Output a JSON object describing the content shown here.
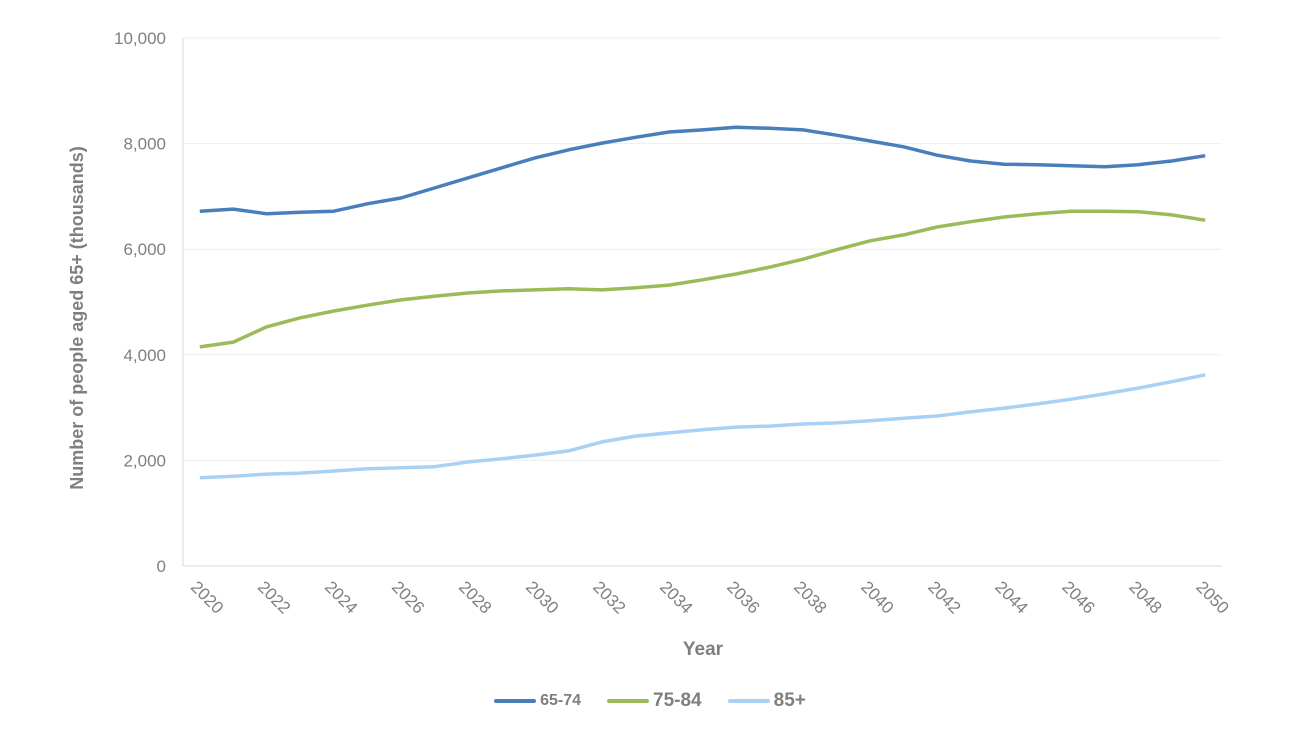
{
  "chart_data": {
    "type": "line",
    "title": "",
    "xlabel": "Year",
    "ylabel": "Number of people aged 65+  (thousands)",
    "ylim": [
      0,
      10000
    ],
    "yticks": [
      "0",
      "2,000",
      "4,000",
      "6,000",
      "8,000",
      "10,000"
    ],
    "ytick_values": [
      0,
      2000,
      4000,
      6000,
      8000,
      10000
    ],
    "x": [
      2020,
      2021,
      2022,
      2023,
      2024,
      2025,
      2026,
      2027,
      2028,
      2029,
      2030,
      2031,
      2032,
      2033,
      2034,
      2035,
      2036,
      2037,
      2038,
      2039,
      2040,
      2041,
      2042,
      2043,
      2044,
      2045,
      2046,
      2047,
      2048,
      2049,
      2050
    ],
    "xticks": [
      "2020",
      "2022",
      "2024",
      "2026",
      "2028",
      "2030",
      "2032",
      "2034",
      "2036",
      "2038",
      "2040",
      "2042",
      "2044",
      "2046",
      "2048",
      "2050"
    ],
    "grid": true,
    "legend_position": "bottom",
    "series": [
      {
        "name": "65-74",
        "color": "#4a7ebb",
        "values": [
          6720,
          6760,
          6670,
          6700,
          6720,
          6860,
          6970,
          7160,
          7350,
          7540,
          7730,
          7880,
          8010,
          8120,
          8220,
          8260,
          8310,
          8290,
          8260,
          8160,
          8050,
          7940,
          7780,
          7670,
          7610,
          7600,
          7580,
          7560,
          7600,
          7670,
          7770
        ]
      },
      {
        "name": "75-84",
        "color": "#9bbb59",
        "values": [
          4150,
          4240,
          4530,
          4700,
          4830,
          4940,
          5040,
          5110,
          5170,
          5210,
          5230,
          5250,
          5230,
          5270,
          5320,
          5420,
          5530,
          5660,
          5810,
          5990,
          6160,
          6270,
          6420,
          6520,
          6610,
          6670,
          6720,
          6720,
          6710,
          6650,
          6550
        ]
      },
      {
        "name": "85+",
        "color": "#a9d1f3",
        "values": [
          1670,
          1700,
          1740,
          1760,
          1800,
          1840,
          1860,
          1880,
          1970,
          2030,
          2100,
          2180,
          2350,
          2460,
          2520,
          2580,
          2630,
          2650,
          2690,
          2710,
          2750,
          2800,
          2840,
          2920,
          2990,
          3070,
          3160,
          3260,
          3370,
          3490,
          3620
        ]
      }
    ]
  }
}
